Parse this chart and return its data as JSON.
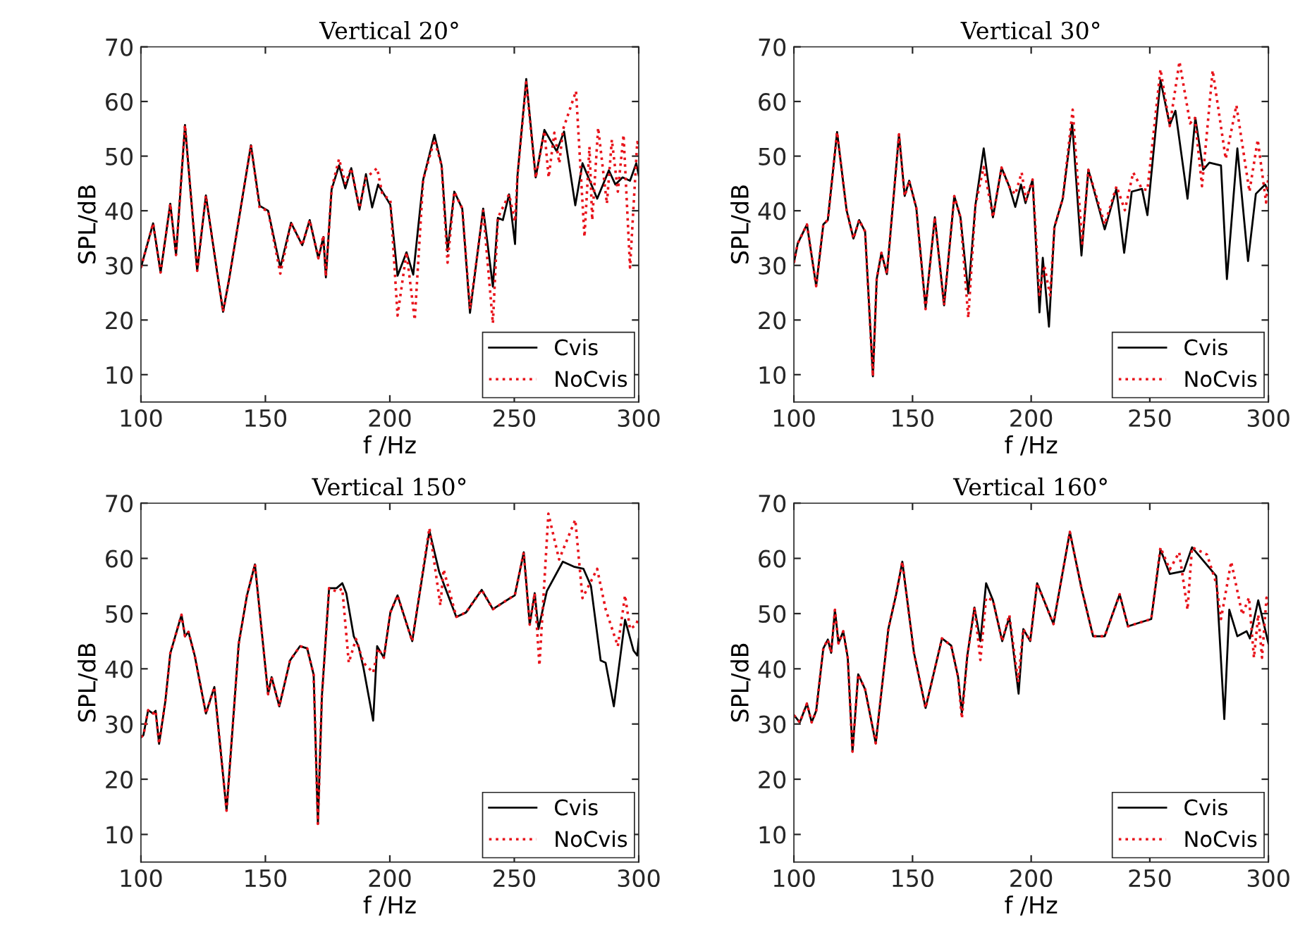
{
  "chart_data": [
    {
      "type": "line",
      "title": "Vertical 20°",
      "xlabel": "f /Hz",
      "ylabel": "SPL/dB",
      "xlim": [
        100,
        300
      ],
      "xticks": [
        100,
        150,
        200,
        250,
        300
      ],
      "ylim": [
        5,
        70
      ],
      "yticks": [
        10,
        20,
        30,
        40,
        50,
        60,
        70
      ],
      "grid": false,
      "legend": "bottom right",
      "series": [
        {
          "name": "Cvis",
          "color": "#000000",
          "line_style": "solid",
          "x": [
            100,
            104.9,
            107.9,
            111.8,
            114.1,
            117.7,
            122.6,
            126.1,
            130.5,
            133,
            135.4,
            139.3,
            144.2,
            147.7,
            151.1,
            156,
            160.3,
            164.8,
            167.8,
            171.3,
            173.3,
            174.3,
            176.6,
            179.6,
            182.1,
            184.5,
            187.8,
            190.4,
            192.9,
            195.3,
            200.2,
            203.1,
            206.7,
            209.4,
            213.4,
            217.9,
            220.8,
            223.2,
            225.9,
            229.1,
            232.2,
            237.5,
            241.4,
            243.4,
            245.4,
            247.9,
            250.3,
            251.3,
            254.8,
            258.6,
            262.1,
            267,
            270,
            274.5,
            277.4,
            283.3,
            288,
            290.6,
            293.5,
            296.5,
            299,
            300
          ],
          "values": [
            29.6,
            37.7,
            28.7,
            41.3,
            31.9,
            55.7,
            29,
            42.8,
            29.1,
            21.5,
            27.4,
            38.3,
            52,
            40.9,
            40,
            29.6,
            37.8,
            33.7,
            38.3,
            31.3,
            35.2,
            27.8,
            43.9,
            48.3,
            44.1,
            47.8,
            40.2,
            46.7,
            40.6,
            44.8,
            41.1,
            28.1,
            32.4,
            28.3,
            45.7,
            53.9,
            48.3,
            32.6,
            43.5,
            40.4,
            21.3,
            40.4,
            26.1,
            38.7,
            38.3,
            43,
            33.9,
            46.5,
            64.1,
            46.1,
            54.8,
            50.9,
            54.5,
            41,
            48.7,
            42.2,
            47.4,
            44.8,
            46.1,
            45.5,
            48.7,
            46.5
          ]
        },
        {
          "name": "NoCvis",
          "color": "#e8141c",
          "line_style": "dotted",
          "x": [
            100,
            104.9,
            107.9,
            111.8,
            114.1,
            117.7,
            122.6,
            126.1,
            130.5,
            133,
            135.4,
            139.3,
            144.2,
            147.7,
            151.1,
            156,
            160.3,
            164.8,
            167.8,
            171.3,
            173.3,
            174.3,
            176.6,
            179.6,
            182.1,
            184.5,
            187.8,
            190.4,
            194.9,
            197,
            200.2,
            203.1,
            206.7,
            210,
            213.4,
            217.9,
            220.8,
            223.2,
            225.9,
            229.1,
            232.2,
            237.5,
            241.4,
            243.4,
            247.9,
            250.3,
            251.3,
            254.8,
            258.6,
            262.1,
            263.8,
            266.1,
            268.1,
            269.6,
            274.8,
            278.2,
            280.2,
            281.3,
            283.7,
            287.2,
            289.2,
            291.6,
            293.9,
            296.5,
            299.4,
            300
          ],
          "values": [
            29.6,
            37.7,
            28.7,
            41.3,
            31.9,
            55.7,
            29,
            42.8,
            29.1,
            21.5,
            27.4,
            38.3,
            52,
            40.5,
            40,
            28.5,
            37.8,
            33.7,
            38.3,
            31.3,
            35.5,
            28,
            44,
            49.5,
            45,
            47.8,
            40.5,
            46,
            47.8,
            43,
            42,
            20.8,
            32.4,
            20,
            45.7,
            53,
            48.3,
            30.5,
            43.5,
            40.4,
            22,
            40,
            19.4,
            38.7,
            43,
            38,
            46.5,
            63.5,
            46,
            54.6,
            46.1,
            54.3,
            48.7,
            54.9,
            61.9,
            35.2,
            51.7,
            38.3,
            55.2,
            41.3,
            53,
            43.5,
            53.9,
            29.6,
            52.6,
            52
          ]
        }
      ]
    },
    {
      "type": "line",
      "title": "Vertical 30°",
      "xlabel": "f /Hz",
      "ylabel": "SPL/dB",
      "xlim": [
        100,
        300
      ],
      "xticks": [
        100,
        150,
        200,
        250,
        300
      ],
      "ylim": [
        5,
        70
      ],
      "yticks": [
        10,
        20,
        30,
        40,
        50,
        60,
        70
      ],
      "grid": false,
      "legend": "bottom right",
      "series": [
        {
          "name": "Cvis",
          "color": "#000000",
          "line_style": "solid",
          "x": [
            100,
            101.6,
            105.5,
            109.4,
            112.4,
            114.3,
            118.2,
            122.2,
            125.1,
            127.5,
            130,
            133.3,
            134.9,
            136.9,
            139.2,
            144.3,
            146.7,
            148.6,
            151.6,
            155.5,
            159.4,
            163.3,
            167.6,
            170.2,
            173.5,
            176.5,
            180,
            183.9,
            187.5,
            190.8,
            193.3,
            195.7,
            197.6,
            200.6,
            203.5,
            204.9,
            207.5,
            209.8,
            213.3,
            217.3,
            221.2,
            224.1,
            231,
            235.9,
            239.2,
            242.4,
            246.7,
            249,
            254.5,
            258.4,
            260.8,
            265.9,
            269.2,
            272.5,
            275.1,
            280,
            282.5,
            286.9,
            291.4,
            294.7,
            298.6,
            300
          ],
          "values": [
            30.5,
            34,
            37.5,
            26.2,
            37.5,
            38.3,
            54.4,
            40.1,
            34.9,
            38.3,
            36.2,
            9.7,
            27.5,
            32.3,
            28.4,
            54,
            42.7,
            45.5,
            40.5,
            22.3,
            38.8,
            22.7,
            42.7,
            38.8,
            24.9,
            41,
            51.4,
            38.8,
            47.9,
            44.4,
            40.7,
            44.8,
            41.4,
            45.7,
            21.4,
            31.4,
            18.8,
            37,
            42.2,
            56.1,
            31.8,
            47.5,
            36.6,
            44,
            32.3,
            43.5,
            44,
            39.2,
            63.9,
            55.7,
            58.3,
            42.2,
            57,
            47.5,
            48.8,
            48.3,
            27.5,
            51.4,
            30.8,
            43.1,
            44.8,
            43.5
          ]
        },
        {
          "name": "NoCvis",
          "color": "#e8141c",
          "line_style": "dotted",
          "x": [
            100,
            101.6,
            105.5,
            109.4,
            112.4,
            114.3,
            118.2,
            122.2,
            125.1,
            127.5,
            130,
            133.3,
            134.9,
            136.9,
            139.2,
            144.3,
            146.7,
            148.6,
            151.6,
            155.5,
            159.4,
            163.3,
            167.6,
            170.2,
            173.5,
            176.5,
            180,
            183.9,
            187.5,
            190.8,
            193.3,
            196,
            197.8,
            200.6,
            203.5,
            205.5,
            208,
            209.8,
            213.3,
            217.5,
            221.5,
            224.1,
            231,
            236,
            239.5,
            243,
            246.7,
            249,
            254.5,
            258.4,
            262.5,
            267,
            269,
            272,
            276.5,
            282,
            286.5,
            292,
            295.5,
            299,
            300
          ],
          "values": [
            30.5,
            34,
            37.5,
            26.2,
            37.5,
            38.3,
            54.4,
            40.1,
            34.9,
            38.3,
            36.2,
            9.7,
            27.5,
            32.3,
            28.4,
            54,
            42.7,
            45.5,
            40.5,
            22,
            38.8,
            22.7,
            42.7,
            38.8,
            20.4,
            41,
            48,
            38.8,
            47.9,
            44.4,
            43,
            47,
            42,
            45.7,
            24.6,
            30,
            24.5,
            37,
            42.2,
            58.5,
            34,
            47.5,
            37.5,
            44.5,
            40.1,
            47,
            44,
            43.8,
            65.9,
            55.5,
            67.3,
            56,
            57,
            44.5,
            65.7,
            49.5,
            59.3,
            43.5,
            53,
            41.5,
            46.5
          ]
        }
      ]
    },
    {
      "type": "line",
      "title": "Vertical 150°",
      "xlabel": "f /Hz",
      "ylabel": "SPL/dB",
      "xlim": [
        100,
        300
      ],
      "xticks": [
        100,
        150,
        200,
        250,
        300
      ],
      "ylim": [
        5,
        70
      ],
      "yticks": [
        10,
        20,
        30,
        40,
        50,
        60,
        70
      ],
      "grid": false,
      "legend": "bottom right",
      "series": [
        {
          "name": "Cvis",
          "color": "#000000",
          "line_style": "solid",
          "x": [
            100,
            101,
            102.9,
            104.9,
            105.9,
            107.3,
            109.8,
            111.8,
            116.3,
            117.7,
            119.1,
            121.6,
            126.1,
            129.5,
            134.4,
            139.3,
            142.6,
            145.8,
            151.1,
            152.5,
            155.6,
            159.9,
            163.9,
            166.8,
            169.4,
            171.1,
            172.7,
            175.6,
            178.6,
            180.9,
            182.5,
            185.5,
            187.4,
            189.4,
            193.3,
            194.9,
            197.6,
            200.2,
            203.1,
            209,
            215.9,
            219.8,
            226.7,
            230.6,
            236.9,
            241.4,
            248.3,
            250.2,
            253.8,
            256.2,
            258.2,
            259.7,
            263.1,
            269.5,
            273.9,
            277.8,
            280.8,
            284.7,
            286.7,
            290,
            294.5,
            297.9,
            299.4,
            300
          ],
          "values": [
            27.6,
            28,
            32.5,
            31.9,
            32.4,
            26.4,
            34.1,
            42.8,
            49.8,
            45.9,
            46.7,
            42.4,
            31.9,
            36.7,
            14.3,
            44.6,
            53.3,
            58.9,
            35.4,
            38.5,
            33.2,
            41.5,
            44.1,
            43.7,
            38.9,
            11.9,
            35,
            54.6,
            54.6,
            55.5,
            53.7,
            45.9,
            44.1,
            40.2,
            30.6,
            44.1,
            42,
            50.2,
            53.3,
            45,
            65,
            57.6,
            49.4,
            50.2,
            54.3,
            50.8,
            52.8,
            53.3,
            61.1,
            48,
            53.7,
            47.2,
            54.1,
            59.4,
            58.5,
            58.1,
            55,
            41.5,
            41.1,
            33.2,
            48.9,
            43.3,
            42.4,
            45.4
          ]
        },
        {
          "name": "NoCvis",
          "color": "#e8141c",
          "line_style": "dotted",
          "x": [
            100,
            101,
            102.9,
            104.9,
            105.9,
            107.3,
            109.8,
            111.8,
            116.3,
            117.7,
            119.1,
            121.6,
            126.1,
            129.5,
            134.4,
            139.3,
            142.6,
            145.8,
            151.1,
            152.5,
            155.6,
            159.9,
            163.9,
            166.8,
            169.4,
            171.1,
            172.7,
            175.6,
            178.6,
            180.9,
            183.5,
            186.4,
            189.4,
            193.3,
            195.3,
            197.6,
            200.2,
            203.1,
            209,
            215.9,
            220.3,
            221.6,
            226.7,
            230.6,
            236.9,
            241.4,
            248.3,
            250.2,
            253.8,
            256.2,
            258.2,
            260.1,
            263.7,
            268,
            274.5,
            277.4,
            283.3,
            286.7,
            291.6,
            294.5,
            296.5,
            299,
            300
          ],
          "values": [
            27.6,
            28,
            32.5,
            31.9,
            32.4,
            26.4,
            34.1,
            42.8,
            49.8,
            45.9,
            46.7,
            42.4,
            31.9,
            36.7,
            14.3,
            44.6,
            53.3,
            58.9,
            35.4,
            38.5,
            33.2,
            41.5,
            44.1,
            43.7,
            38.9,
            11.9,
            35,
            54.6,
            54,
            54.5,
            41.1,
            45.4,
            41.1,
            39.3,
            43.7,
            42,
            50.2,
            53.3,
            45,
            65.5,
            51.5,
            58,
            49.4,
            50.2,
            54.3,
            50.8,
            52.8,
            53.3,
            61.1,
            48,
            53.7,
            40.6,
            68.1,
            59.8,
            67,
            52.8,
            58.1,
            50.8,
            44.1,
            53.3,
            47.2,
            48,
            49.4
          ]
        }
      ]
    },
    {
      "type": "line",
      "title": "Vertical 160°",
      "xlabel": "f /Hz",
      "ylabel": "SPL/dB",
      "xlim": [
        100,
        300
      ],
      "xticks": [
        100,
        150,
        200,
        250,
        300
      ],
      "ylim": [
        5,
        70
      ],
      "yticks": [
        10,
        20,
        30,
        40,
        50,
        60,
        70
      ],
      "grid": false,
      "legend": "bottom right",
      "series": [
        {
          "name": "Cvis",
          "color": "#000000",
          "line_style": "solid",
          "x": [
            100,
            102.5,
            105.5,
            107.5,
            109.4,
            112.4,
            114.3,
            115.7,
            117.3,
            118.8,
            120.8,
            122.7,
            124.7,
            127.1,
            130,
            134.5,
            139.8,
            143.1,
            145.7,
            150.6,
            155.5,
            162.4,
            166.3,
            169.2,
            170.8,
            173.1,
            176.1,
            178.6,
            181,
            183.9,
            187.8,
            190.8,
            194.7,
            196.7,
            199.6,
            202.5,
            209.4,
            216.3,
            221.2,
            226.1,
            231,
            237.3,
            240.8,
            246.7,
            250.6,
            254.5,
            258.4,
            264.3,
            267.8,
            278,
            281.4,
            283.5,
            286.9,
            290.8,
            292.2,
            295.7,
            300
          ],
          "values": [
            31.6,
            30.3,
            33.7,
            30.3,
            32.4,
            43.7,
            45.3,
            42.9,
            50.7,
            44.6,
            46.8,
            42,
            25,
            39,
            36.3,
            26.5,
            47.2,
            53.5,
            59.4,
            42.9,
            32.9,
            45.5,
            44.2,
            38.5,
            32,
            42.4,
            51.1,
            45,
            55.5,
            52.4,
            45,
            49.4,
            35.5,
            47.2,
            45,
            55.5,
            48.1,
            64.8,
            54.6,
            45.9,
            45.9,
            53.5,
            47.7,
            48.5,
            49,
            61.6,
            57.2,
            57.7,
            62,
            56.8,
            30.9,
            50.7,
            45.9,
            46.8,
            45.5,
            52.4,
            44.6
          ]
        },
        {
          "name": "NoCvis",
          "color": "#e8141c",
          "line_style": "dotted",
          "x": [
            100,
            102.5,
            105.5,
            107.5,
            109.4,
            112.4,
            114.3,
            115.7,
            117.3,
            118.8,
            120.8,
            122.7,
            124.7,
            127.1,
            130,
            134.5,
            139.8,
            143.1,
            145.7,
            150.6,
            155.5,
            162.4,
            166.3,
            169.2,
            170.8,
            173.1,
            176.1,
            178.6,
            181,
            183.9,
            187.8,
            190.8,
            194.5,
            196.7,
            199.6,
            202.5,
            209.4,
            216.3,
            221.2,
            226.1,
            231,
            237.3,
            240.8,
            246.7,
            250.6,
            254.5,
            258.4,
            262.4,
            265.9,
            267.8,
            274.1,
            278,
            280,
            284.3,
            289,
            291.8,
            293.9,
            295.7,
            297.3,
            299.2,
            300
          ],
          "values": [
            31.6,
            30.3,
            33.7,
            30.3,
            32.4,
            43.7,
            45.3,
            42.9,
            50.7,
            44.6,
            46.8,
            42,
            25,
            39,
            36.3,
            26.5,
            47.2,
            53.5,
            59.4,
            42.9,
            32.9,
            45.5,
            44.2,
            38.5,
            31,
            42.4,
            51.1,
            41.6,
            52.9,
            52.4,
            45,
            49.8,
            37.6,
            47.2,
            45,
            55.5,
            48.1,
            64.8,
            54.6,
            45.9,
            45.9,
            53.5,
            47.7,
            48.5,
            49,
            62,
            58,
            61.1,
            50.7,
            62,
            60.7,
            55.5,
            49,
            59.4,
            49.8,
            52.9,
            42,
            49.8,
            42,
            52.9,
            51.6
          ]
        }
      ]
    }
  ]
}
